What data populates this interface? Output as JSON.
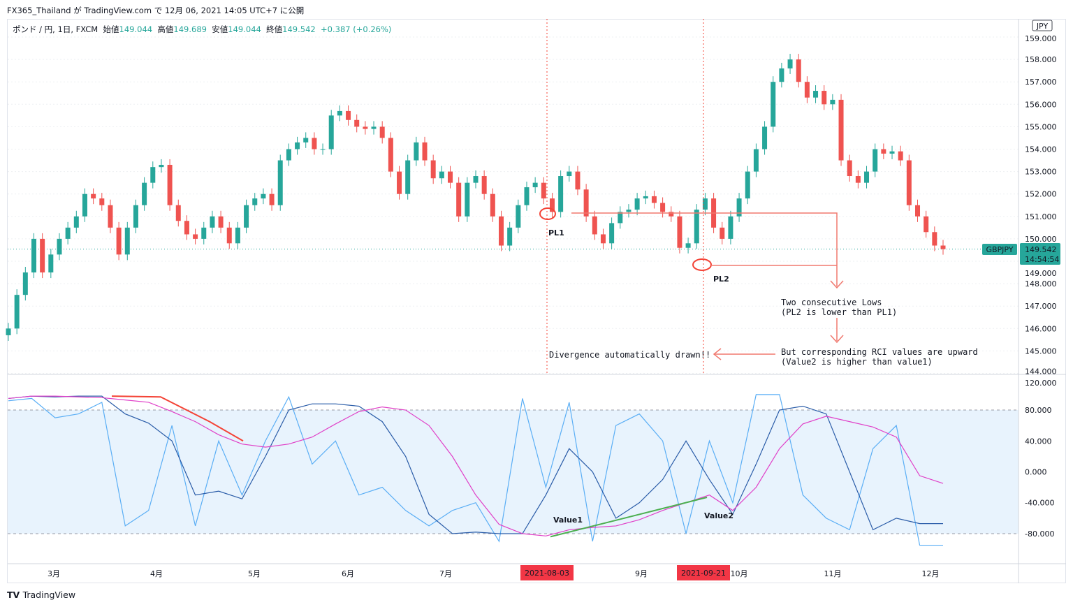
{
  "header": {
    "published": "FX365_Thailand が TradingView.com で 12月 06, 2021 14:05 UTC+7 に公開"
  },
  "legend": {
    "symbol": "ポンド / 円, 1日, FXCM",
    "open_label": "始値",
    "open": "149.044",
    "high_label": "高値",
    "high": "149.689",
    "low_label": "安値",
    "low": "149.044",
    "close_label": "終値",
    "close": "149.542",
    "change": "+0.387 (+0.26%)"
  },
  "currency": "JPY",
  "price_tag": {
    "symbol": "GBPJPY",
    "price": "149.542",
    "countdown": "14:54:54"
  },
  "colors": {
    "up": "#26a69a",
    "down": "#ef5350",
    "rci_short": "#5aaef5",
    "rci_mid": "#2a5ca8",
    "rci_long": "#e040c8",
    "divergence_bear": "#f44336",
    "divergence_bull": "#4caf50",
    "annotation": "#f0786e",
    "band": "#e8f3fd"
  },
  "brand": "TradingView",
  "chart_data": [
    {
      "type": "candlestick",
      "ylim": [
        144,
        159
      ],
      "yticks": [
        "159.000",
        "158.000",
        "157.000",
        "156.000",
        "155.000",
        "154.000",
        "153.000",
        "152.000",
        "151.000",
        "150.000",
        "149.000",
        "148.000",
        "147.000",
        "146.000",
        "145.000",
        "144.000"
      ],
      "closes": [
        146,
        147.5,
        148.5,
        150,
        148.5,
        149.3,
        150,
        150.5,
        151,
        152,
        151.8,
        151.5,
        150.5,
        149.3,
        150.5,
        151.5,
        152.5,
        153.2,
        153.3,
        151.5,
        150.8,
        150.2,
        150,
        150.5,
        151,
        150.5,
        149.8,
        150.5,
        151.5,
        151.8,
        152,
        151.5,
        153.5,
        154,
        154.3,
        154.5,
        154,
        154,
        155.5,
        155.7,
        155.3,
        155,
        154.9,
        155,
        154.5,
        153,
        152,
        153.5,
        154.3,
        153.5,
        152.7,
        153,
        152.5,
        151,
        152.5,
        152.8,
        152,
        151,
        149.7,
        150.5,
        151.5,
        152.3,
        152.5,
        151.8,
        151.2,
        152.8,
        153,
        152.2,
        151,
        150.2,
        149.8,
        150.7,
        151.2,
        151.3,
        151.8,
        151.9,
        151.6,
        151.2,
        151,
        149.6,
        149.8,
        151.3,
        151.8,
        150.5,
        150,
        151,
        151.8,
        153,
        154,
        155,
        157,
        157.6,
        158,
        157,
        156.3,
        156.6,
        156,
        156.2,
        153.5,
        152.8,
        152.5,
        153,
        154,
        153.8,
        153.9,
        153.5,
        151.5,
        151,
        150.3,
        149.7,
        149.542
      ],
      "annotations": {
        "pl1": "PL1",
        "pl2": "PL2",
        "lows_1": "Two consecutive Lows",
        "lows_2": "(PL2 is lower than PL1)",
        "rci_1": "But corresponding RCI values are upward",
        "rci_2": "(Value2 is higher than value1)",
        "divergence": "Divergence automatically drawn!!"
      }
    },
    {
      "type": "line",
      "ylim": [
        -120,
        120
      ],
      "yticks": [
        "120.000",
        "80.000",
        "40.000",
        "0.000",
        "-40.000",
        "-80.000"
      ],
      "series": [
        {
          "key": "short",
          "values": [
            92,
            95,
            70,
            75,
            90,
            -70,
            -50,
            60,
            -70,
            40,
            -30,
            40,
            97,
            10,
            40,
            -30,
            -20,
            -50,
            -70,
            -50,
            -40,
            -90,
            95,
            -20,
            90,
            -90,
            60,
            75,
            40,
            -80,
            40,
            -40,
            100,
            100,
            -30,
            -60,
            -75,
            30,
            60,
            -95,
            -95
          ]
        },
        {
          "key": "mid",
          "values": [
            95,
            98,
            97,
            98,
            98,
            75,
            63,
            40,
            -30,
            -25,
            -35,
            20,
            80,
            88,
            88,
            85,
            65,
            20,
            -55,
            -80,
            -78,
            -80,
            -80,
            -30,
            30,
            0,
            -60,
            -40,
            -10,
            40,
            -10,
            -55,
            10,
            80,
            85,
            75,
            0,
            -75,
            -60,
            -67,
            -67
          ]
        },
        {
          "key": "long",
          "values": [
            95,
            98,
            98,
            97,
            96,
            93,
            90,
            78,
            65,
            48,
            36,
            32,
            36,
            45,
            62,
            78,
            84,
            80,
            60,
            20,
            -30,
            -68,
            -80,
            -83,
            -75,
            -72,
            -70,
            -62,
            -50,
            -40,
            -30,
            -50,
            -20,
            30,
            62,
            72,
            65,
            58,
            45,
            -5,
            -15
          ]
        }
      ],
      "labels": {
        "value1": "Value1",
        "value2": "Value2"
      }
    },
    {
      "xticks": [
        "3月",
        "4月",
        "5月",
        "6月",
        "7月",
        "9月",
        "10月",
        "11月",
        "12月"
      ],
      "markers": [
        "2021-08-03",
        "2021-09-21"
      ]
    }
  ]
}
